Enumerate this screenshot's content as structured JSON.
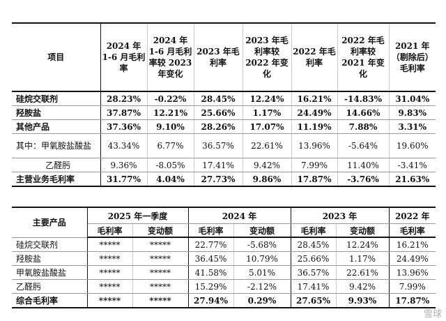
{
  "table1": {
    "headers": [
      "项目",
      "2024 年 1-6 月毛利率",
      "2024 年 1-6 月毛利率较 2023 年变化",
      "2023 年毛利率",
      "2023 年毛利率较 2022 年变化",
      "2022 年毛利率",
      "2022 年毛利率较 2021 年变化",
      "2021 年（剔除后）毛利率"
    ],
    "rows": [
      {
        "name": "硅烷交联剂",
        "values": [
          "28.23%",
          "-0.22%",
          "28.45%",
          "12.24%",
          "16.21%",
          "-14.83%",
          "31.04%"
        ]
      },
      {
        "name": "羟胺盐",
        "values": [
          "37.87%",
          "12.21%",
          "25.66%",
          "1.17%",
          "24.49%",
          "14.66%",
          "9.83%"
        ]
      },
      {
        "name": "其他产品",
        "values": [
          "37.36%",
          "9.10%",
          "28.26%",
          "17.07%",
          "11.19%",
          "7.88%",
          "3.31%"
        ]
      },
      {
        "name": "其中：甲氧胺盐酸盐",
        "values": [
          "43.34%",
          "6.77%",
          "36.57%",
          "22.61%",
          "13.96%",
          "-5.64%",
          "19.60%"
        ]
      },
      {
        "name": "乙醛肟",
        "values": [
          "9.36%",
          "-8.05%",
          "17.41%",
          "9.42%",
          "7.99%",
          "11.40%",
          "-3.41%"
        ]
      },
      {
        "name": "主营业务毛利率",
        "values": [
          "31.77%",
          "4.04%",
          "27.73%",
          "9.86%",
          "17.87%",
          "-3.76%",
          "21.63%"
        ]
      }
    ]
  },
  "table2": {
    "product_header": "主要产品",
    "groups": [
      "2025 年一季度",
      "2024 年",
      "2023 年",
      "2022 年"
    ],
    "subheaders": [
      "毛利率",
      "变动额",
      "毛利率",
      "变动额",
      "毛利率",
      "变动额",
      "毛利率"
    ],
    "rows": [
      {
        "name": "硅烷交联剂",
        "values": [
          "*****",
          "*****",
          "22.77%",
          "-5.68%",
          "28.45%",
          "12.24%",
          "16.21%"
        ]
      },
      {
        "name": "羟胺盐",
        "values": [
          "*****",
          "*****",
          "36.45%",
          "10.79%",
          "25.66%",
          "1.17%",
          "24.49%"
        ]
      },
      {
        "name": "甲氧胺盐酸盐",
        "values": [
          "*****",
          "*****",
          "41.58%",
          "5.01%",
          "36.57%",
          "22.61%",
          "13.96%"
        ]
      },
      {
        "name": "乙醛肟",
        "values": [
          "*****",
          "*****",
          "15.29%",
          "-2.12%",
          "17.41%",
          "9.42%",
          "7.99%"
        ]
      },
      {
        "name": "综合毛利率",
        "values": [
          "*****",
          "*****",
          "27.94%",
          "0.29%",
          "27.65%",
          "9.93%",
          "17.87%"
        ]
      }
    ]
  },
  "watermark": "雪球"
}
